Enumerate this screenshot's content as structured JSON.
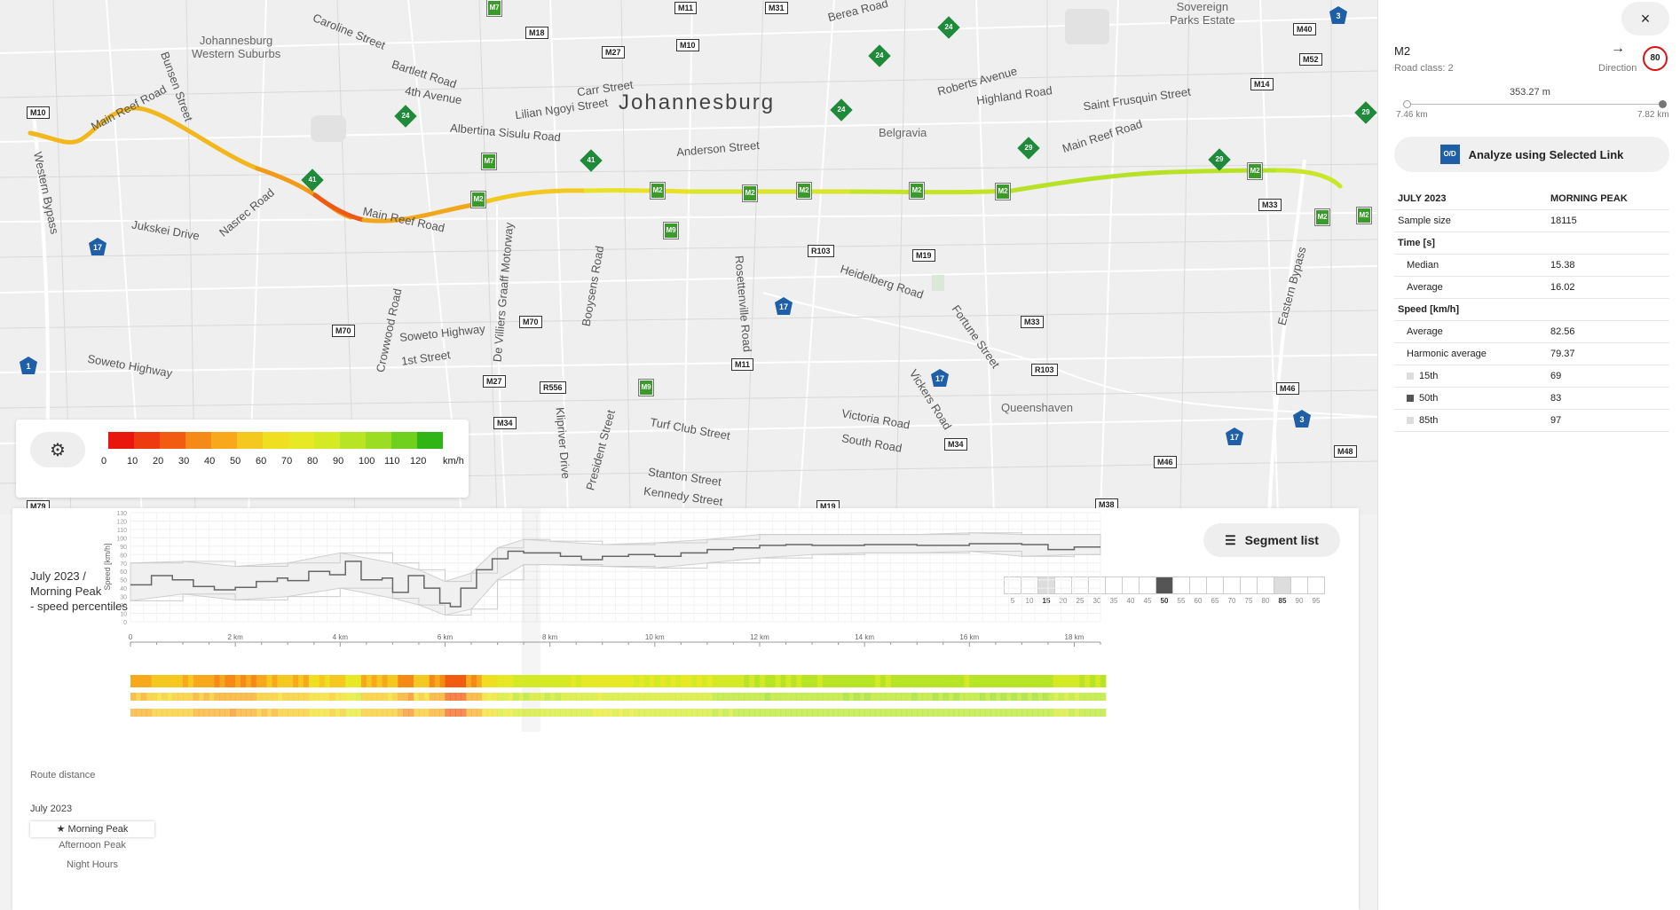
{
  "map": {
    "city": "Johannesburg",
    "areas": [
      "Johannesburg\nWestern Suburbs",
      "Sovereign\nParks Estate",
      "Belgravia",
      "Queenshaven"
    ],
    "streets": [
      "Main Reef Road",
      "Main Reef Road",
      "Albertina Sisulu Road",
      "Anderson Street",
      "Heidelberg Road",
      "Main Reef Road",
      "Western Bypass",
      "Eastern Bypass",
      "De Villiers Graaff Motorway",
      "Soweto Highway",
      "Soweto Highway",
      "Turf Club Street",
      "Stanton Street",
      "Kennedy Street",
      "Victoria Road",
      "South Road",
      "Fortune Street",
      "Vickers Road",
      "Crowwood Road",
      "Booysens Road",
      "Rosettenville Road",
      "Klipriver Drive",
      "President Street",
      "Carr Street",
      "Lilian Ngoyi Street",
      "4th Avenue",
      "Bartlett Road",
      "Caroline Street",
      "Bunsen Street",
      "Jukskei Drive",
      "Nasrec Road",
      "Roberts Avenue",
      "Highland Road",
      "Saint Frusquin Street",
      "1st Street",
      "Berea Road"
    ],
    "shields": [
      "M11",
      "M31",
      "M18",
      "M27",
      "M10",
      "M10",
      "M40",
      "M52",
      "M14",
      "R103",
      "M19",
      "M33",
      "M70",
      "M70",
      "M33",
      "R103",
      "M27",
      "R556",
      "M11",
      "M34",
      "M34",
      "M46",
      "M46",
      "M48",
      "M38",
      "M79",
      "M19"
    ],
    "route_tags": [
      "M2",
      "M2",
      "M2",
      "M2",
      "M2",
      "M2",
      "M2",
      "M2",
      "M2",
      "M2",
      "M9",
      "M7",
      "M7",
      "M9"
    ],
    "green_markers": [
      "24",
      "24",
      "24",
      "24",
      "41",
      "41",
      "29",
      "29",
      "29",
      "M7"
    ],
    "blue_markers": [
      "17",
      "17",
      "17",
      "17",
      "1",
      "3",
      "3",
      "3"
    ]
  },
  "legend": {
    "ticks": [
      "0",
      "10",
      "20",
      "30",
      "40",
      "50",
      "60",
      "70",
      "80",
      "90",
      "100",
      "110",
      "120",
      "km/h"
    ],
    "colors": [
      "#e8160c",
      "#ed3a0e",
      "#f25c12",
      "#f58a17",
      "#f7a91b",
      "#f5c81f",
      "#f0de20",
      "#e6e923",
      "#d3ea25",
      "#b7e525",
      "#9bdd22",
      "#6fd01d",
      "#2fb516"
    ]
  },
  "panel": {
    "close_icon": "×",
    "road_name": "M2",
    "road_class": "Road class: 2",
    "direction_label": "Direction",
    "direction_arrow": "→",
    "speed_limit": "80",
    "distance": "353.27 m",
    "range_min": "7.46 km",
    "range_max": "7.82 km",
    "analyze_label": "Analyze using Selected Link",
    "analyze_icon": "O/D",
    "stats_header": {
      "k": "JULY 2023",
      "v": "MORNING PEAK"
    },
    "sample_size": {
      "k": "Sample size",
      "v": "18115"
    },
    "time_section": "Time [s]",
    "time_median": {
      "k": "Median",
      "v": "15.38"
    },
    "time_average": {
      "k": "Average",
      "v": "16.02"
    },
    "speed_section": "Speed [km/h]",
    "speed_average": {
      "k": "Average",
      "v": "82.56"
    },
    "speed_harmonic": {
      "k": "Harmonic average",
      "v": "79.37"
    },
    "p15": {
      "k": "15th",
      "v": "69"
    },
    "p50": {
      "k": "50th",
      "v": "83"
    },
    "p85": {
      "k": "85th",
      "v": "97"
    }
  },
  "bottom": {
    "segment_list_label": "Segment list",
    "segment_list_icon": "☰",
    "title_line1": "July 2023  /",
    "title_line2": "Morning Peak",
    "title_line3": "- speed percentiles",
    "percentile_options": [
      "5",
      "10",
      "15",
      "20",
      "25",
      "30",
      "35",
      "40",
      "45",
      "50",
      "55",
      "60",
      "65",
      "70",
      "75",
      "80",
      "85",
      "90",
      "95"
    ],
    "percentile_selected": [
      "15",
      "50",
      "85"
    ],
    "route_distance_label": "Route distance",
    "month_label": "July 2023",
    "bands": [
      "Morning Peak",
      "Afternoon Peak",
      "Night Hours"
    ],
    "band_star": "★"
  },
  "chart_data": {
    "type": "line",
    "ylabel": "Speed [km/h]",
    "xlabel": "Route distance",
    "ylim": [
      0,
      130
    ],
    "yticks": [
      0,
      10,
      20,
      30,
      40,
      50,
      60,
      70,
      80,
      90,
      100,
      110,
      120,
      130
    ],
    "xlim": [
      0,
      18.5
    ],
    "xticks": [
      "0",
      "2 km",
      "4 km",
      "6 km",
      "8 km",
      "10 km",
      "12 km",
      "14 km",
      "16 km",
      "18 km"
    ],
    "selected_range_km": [
      7.46,
      7.82
    ],
    "series": [
      {
        "name": "50th",
        "x": [
          0,
          0.4,
          0.8,
          1.2,
          1.6,
          2.0,
          2.4,
          2.8,
          3.0,
          3.4,
          3.8,
          4.1,
          4.4,
          4.8,
          5.0,
          5.3,
          5.6,
          5.9,
          6.1,
          6.3,
          6.6,
          6.9,
          7.2,
          7.5,
          7.8,
          8.2,
          8.6,
          9.0,
          9.5,
          10.0,
          10.5,
          11.0,
          11.5,
          12.0,
          12.5,
          13.0,
          14.0,
          15.0,
          16.0,
          17.0,
          17.5,
          18.0,
          18.5
        ],
        "values": [
          44,
          55,
          50,
          42,
          38,
          41,
          48,
          52,
          49,
          60,
          56,
          72,
          50,
          52,
          35,
          55,
          40,
          22,
          18,
          40,
          62,
          75,
          84,
          82,
          82,
          78,
          74,
          78,
          80,
          78,
          82,
          86,
          88,
          91,
          92,
          91,
          92,
          91,
          93,
          92,
          86,
          89,
          89
        ]
      },
      {
        "name": "15th",
        "x": [
          0,
          1,
          2,
          3,
          4,
          5,
          5.5,
          6.0,
          6.5,
          7.0,
          7.5,
          8,
          9,
          10,
          11,
          12,
          13,
          14,
          15,
          16,
          17,
          18,
          18.5
        ],
        "values": [
          25,
          33,
          26,
          30,
          40,
          28,
          20,
          8,
          15,
          50,
          68,
          68,
          66,
          64,
          70,
          76,
          80,
          82,
          82,
          84,
          78,
          80,
          80
        ]
      },
      {
        "name": "85th",
        "x": [
          0,
          1,
          2,
          3,
          4,
          5,
          5.5,
          6.0,
          6.5,
          7.0,
          7.5,
          8,
          9,
          10,
          11,
          12,
          13,
          14,
          15,
          16,
          17,
          18,
          18.5
        ],
        "values": [
          70,
          72,
          66,
          70,
          82,
          70,
          62,
          48,
          58,
          88,
          98,
          96,
          92,
          94,
          98,
          104,
          104,
          104,
          104,
          106,
          104,
          104,
          104
        ]
      }
    ]
  }
}
